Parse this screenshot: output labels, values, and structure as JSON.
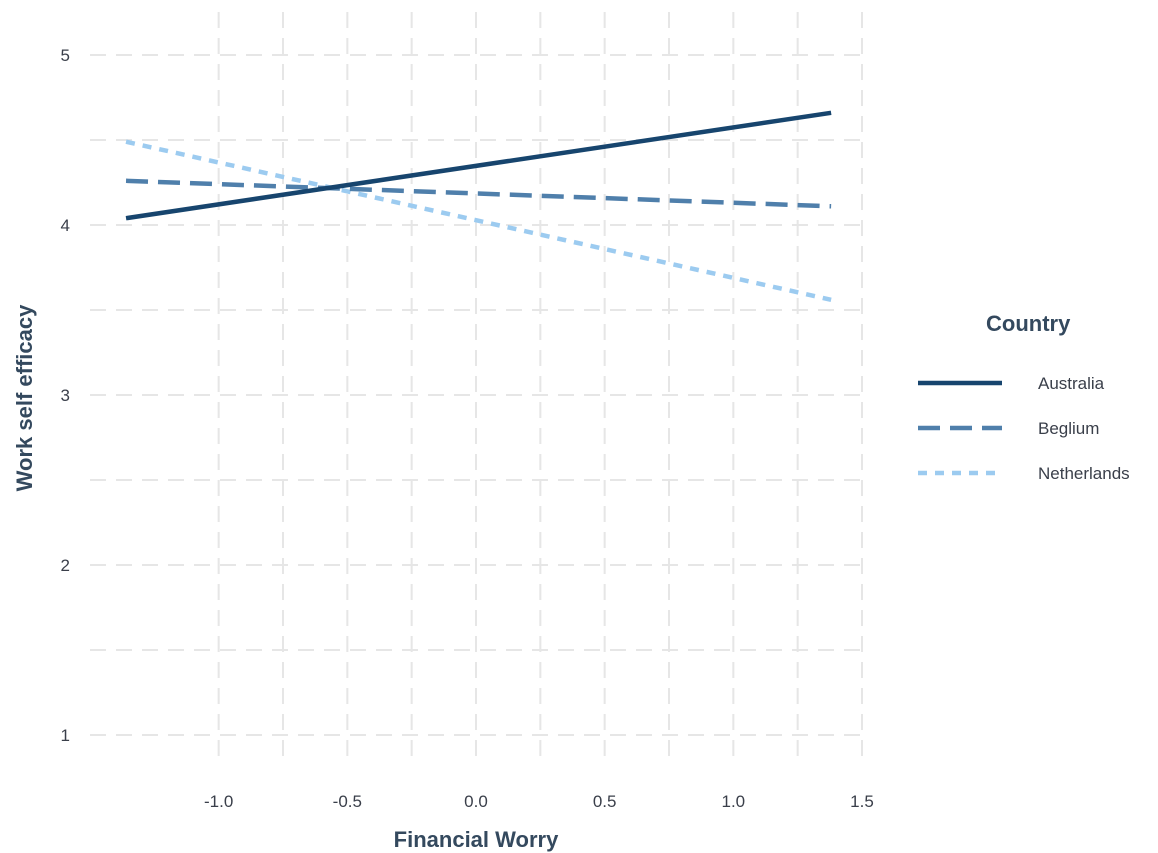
{
  "chart_data": {
    "type": "line",
    "title": "",
    "xlabel": "Financial Worry",
    "ylabel": "Work self efficacy",
    "xlim": [
      -1.5,
      1.5
    ],
    "ylim": [
      1,
      5
    ],
    "xticks": [
      -1.0,
      -0.5,
      0.0,
      0.5,
      1.0,
      1.5
    ],
    "xtick_labels": [
      "-1.0",
      "-0.5",
      "0.0",
      "0.5",
      "1.0",
      "1.5"
    ],
    "yticks": [
      1,
      2,
      3,
      4,
      5
    ],
    "ytick_labels": [
      "1",
      "2",
      "3",
      "4",
      "5"
    ],
    "grid": true,
    "legend": {
      "title": "Country",
      "placement": "right"
    },
    "series": [
      {
        "name": "Australia",
        "x": [
          -1.36,
          1.38
        ],
        "y": [
          4.04,
          4.66
        ],
        "color": "#17456e",
        "linestyle": "solid"
      },
      {
        "name": "Beglium",
        "x": [
          -1.36,
          1.38
        ],
        "y": [
          4.26,
          4.11
        ],
        "color": "#4f7fab",
        "linestyle": "dashed"
      },
      {
        "name": "Netherlands",
        "x": [
          -1.36,
          1.38
        ],
        "y": [
          4.49,
          3.56
        ],
        "color": "#9ccbf0",
        "linestyle": "dotted"
      }
    ]
  }
}
